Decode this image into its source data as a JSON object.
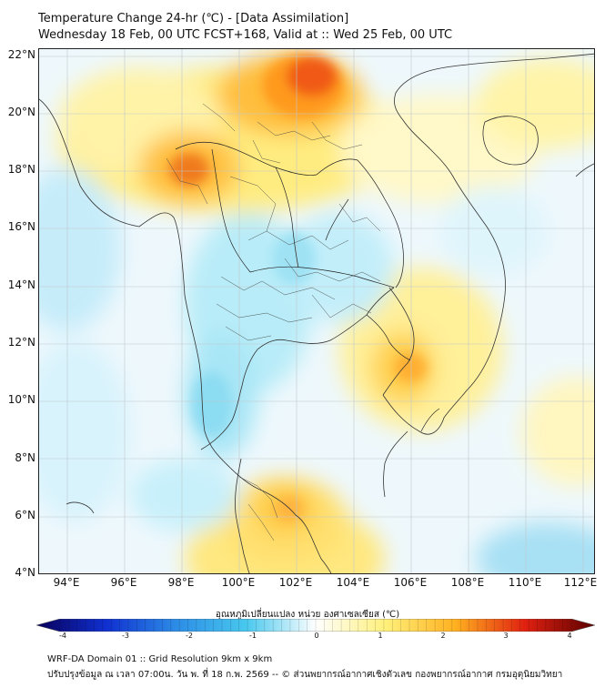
{
  "header": {
    "line1": "Temperature Change 24-hr (℃) - [Data Assimilation]",
    "line2": "Wednesday 18 Feb, 00 UTC FCST+168, Valid at :: Wed 25 Feb, 00 UTC"
  },
  "axes": {
    "lat_labels": [
      "22°N",
      "20°N",
      "18°N",
      "16°N",
      "14°N",
      "12°N",
      "10°N",
      "8°N",
      "6°N",
      "4°N"
    ],
    "lon_labels": [
      "94°E",
      "96°E",
      "98°E",
      "100°E",
      "102°E",
      "104°E",
      "106°E",
      "108°E",
      "110°E",
      "112°E"
    ]
  },
  "colorbar": {
    "title": "อุณหภูมิเปลี่ยนแปลง หน่วย องศาเซลเซียส (℃)",
    "ticks": [
      "-4",
      "-3",
      "-2",
      "-1",
      "0",
      "1",
      "2",
      "3",
      "4"
    ],
    "colors": [
      "#08005a",
      "#1030d0",
      "#2c8ce6",
      "#48c8ee",
      "#ffffff",
      "#fff07a",
      "#ffb020",
      "#e02010",
      "#5a0000"
    ]
  },
  "footer": {
    "line1": "WRF-DA Domain 01 :: Grid Resolution 9km x 9km",
    "line2": "ปรับปรุงข้อมูล ณ เวลา 07:00น. วัน พ. ที่ 18 ก.พ. 2569 -- © ส่วนพยากรณ์อากาศเชิงตัวเลข กองพยากรณ์อากาศ กรมอุตุนิยมวิทยา"
  }
}
